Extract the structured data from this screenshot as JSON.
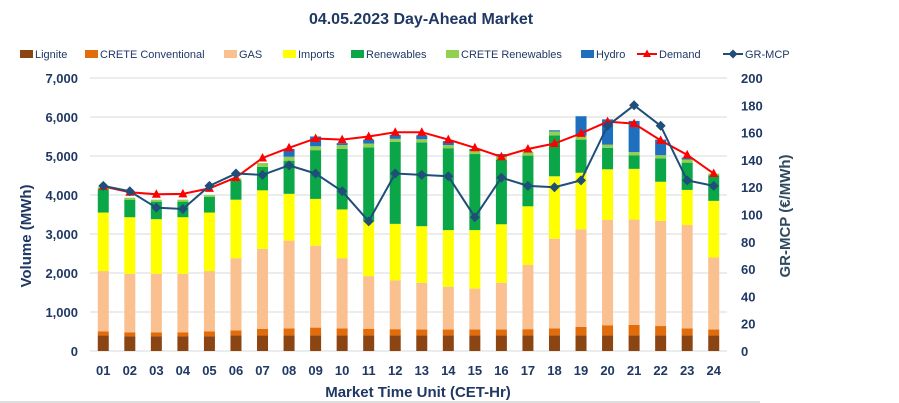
{
  "chart_data": {
    "type": "bar",
    "title": "04.05.2023  Day-Ahead Market",
    "xlabel": "Market Time Unit (CET-Hr)",
    "ylabel": "Volume (MWh)",
    "y2label": "GR-MCP (€/MWh)",
    "ylim": [
      0,
      7000
    ],
    "y2lim": [
      0,
      200
    ],
    "yticks": [
      "0",
      "1,000",
      "2,000",
      "3,000",
      "4,000",
      "5,000",
      "6,000",
      "7,000"
    ],
    "y2ticks": [
      "0",
      "20",
      "40",
      "60",
      "80",
      "100",
      "120",
      "140",
      "160",
      "180",
      "200"
    ],
    "categories": [
      "01",
      "02",
      "03",
      "04",
      "05",
      "06",
      "07",
      "08",
      "09",
      "10",
      "11",
      "12",
      "13",
      "14",
      "15",
      "16",
      "17",
      "18",
      "19",
      "20",
      "21",
      "22",
      "23",
      "24"
    ],
    "series": [
      {
        "name": "Lignite",
        "color": "#8b4513",
        "values": [
          400,
          380,
          380,
          380,
          380,
          400,
          400,
          400,
          400,
          400,
          400,
          400,
          400,
          400,
          400,
          400,
          400,
          400,
          400,
          400,
          400,
          400,
          400,
          400
        ]
      },
      {
        "name": "CRETE Conventional",
        "color": "#e36c0a",
        "values": [
          100,
          100,
          100,
          100,
          120,
          130,
          170,
          180,
          200,
          180,
          170,
          160,
          150,
          150,
          150,
          150,
          160,
          180,
          220,
          260,
          270,
          240,
          180,
          150
        ]
      },
      {
        "name": "GAS",
        "color": "#fac090",
        "values": [
          1550,
          1500,
          1500,
          1500,
          1550,
          1850,
          2050,
          2250,
          2100,
          1800,
          1350,
          1250,
          1200,
          1100,
          1050,
          1200,
          1650,
          2300,
          2500,
          2700,
          2700,
          2700,
          2650,
          1850
        ]
      },
      {
        "name": "Imports",
        "color": "#ffff00",
        "values": [
          1500,
          1450,
          1400,
          1450,
          1500,
          1500,
          1500,
          1200,
          1200,
          1250,
          1400,
          1450,
          1450,
          1450,
          1500,
          1500,
          1500,
          1600,
          1450,
          1300,
          1300,
          1000,
          900,
          1450
        ]
      },
      {
        "name": "Renewables",
        "color": "#0aa648",
        "values": [
          600,
          450,
          450,
          400,
          400,
          500,
          600,
          850,
          1250,
          1550,
          1900,
          2100,
          2150,
          2100,
          1950,
          1650,
          1300,
          1050,
          850,
          550,
          350,
          600,
          700,
          650
        ]
      },
      {
        "name": "CRETE Renewables",
        "color": "#92d050",
        "values": [
          50,
          50,
          50,
          50,
          50,
          50,
          100,
          100,
          100,
          100,
          100,
          80,
          80,
          80,
          80,
          100,
          100,
          100,
          100,
          80,
          80,
          80,
          80,
          50
        ]
      },
      {
        "name": "Hydro",
        "color": "#1f6fbf",
        "values": [
          0,
          0,
          0,
          0,
          0,
          0,
          0,
          200,
          250,
          50,
          100,
          100,
          100,
          100,
          50,
          50,
          0,
          30,
          500,
          650,
          800,
          400,
          50,
          0
        ]
      }
    ],
    "lines": [
      {
        "name": "Demand",
        "axis": "left",
        "color": "#ff0000",
        "marker": "triangle",
        "values": [
          4220,
          4070,
          4020,
          4030,
          4170,
          4450,
          4950,
          5210,
          5450,
          5420,
          5500,
          5610,
          5610,
          5420,
          5210,
          4980,
          5180,
          5320,
          5580,
          5880,
          5830,
          5400,
          5030,
          4550
        ]
      },
      {
        "name": "GR-MCP",
        "axis": "right",
        "color": "#1f4e79",
        "marker": "diamond",
        "values": [
          121,
          117,
          105,
          104,
          121,
          130,
          129,
          136,
          130,
          117,
          95,
          130,
          129,
          128,
          98,
          127,
          121,
          120,
          125,
          165,
          180,
          165,
          125,
          121
        ]
      }
    ]
  }
}
